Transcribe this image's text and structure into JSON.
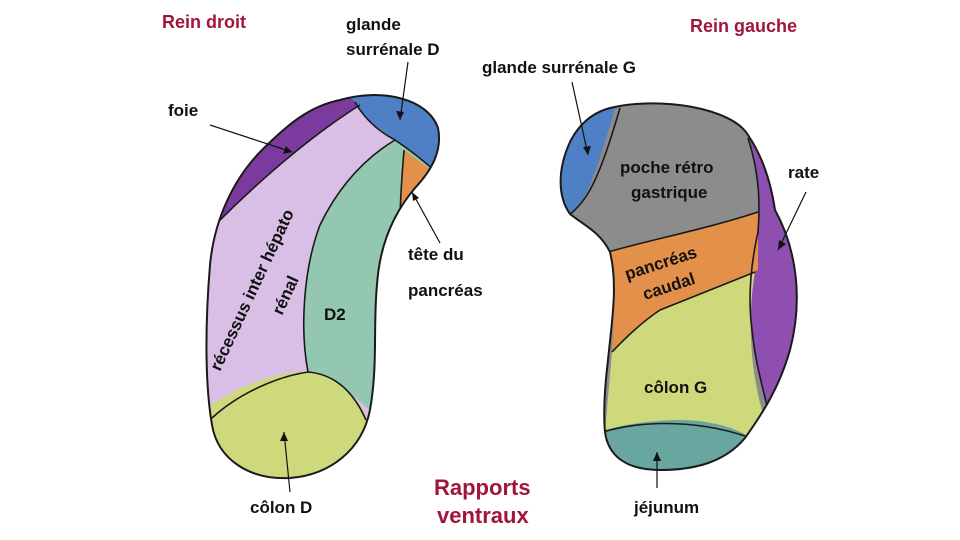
{
  "titles": {
    "right_kidney": "Rein droit",
    "left_kidney": "Rein gauche",
    "main_line1": "Rapports",
    "main_line2": "ventraux"
  },
  "right_kidney": {
    "adrenal_line1": "glande",
    "adrenal_line2": "surrénale D",
    "liver": "foie",
    "recess_line1": "récessus inter hépato",
    "recess_line2": "rénal",
    "duodenum": "D2",
    "pancreas_head_line1": "tête du",
    "pancreas_head_line2": "pancréas",
    "colon": "côlon D"
  },
  "left_kidney": {
    "adrenal": "glande surrénale G",
    "pouch_line1": "poche rétro",
    "pouch_line2": "gastrique",
    "spleen": "rate",
    "pancreas_line1": "pancréas",
    "pancreas_line2": "caudal",
    "colon": "côlon G",
    "jejunum": "jéjunum"
  },
  "colors": {
    "liver": "#7b3a9e",
    "recess": "#d9bfe6",
    "adrenal": "#4f7fc4",
    "duodenum": "#93c7b0",
    "pancreas": "#e3914a",
    "colon": "#cdd97a",
    "pouch": "#8c8c8c",
    "spleen": "#8e4fb0",
    "jejunum": "#6aa6a0",
    "title": "#a0163a"
  }
}
